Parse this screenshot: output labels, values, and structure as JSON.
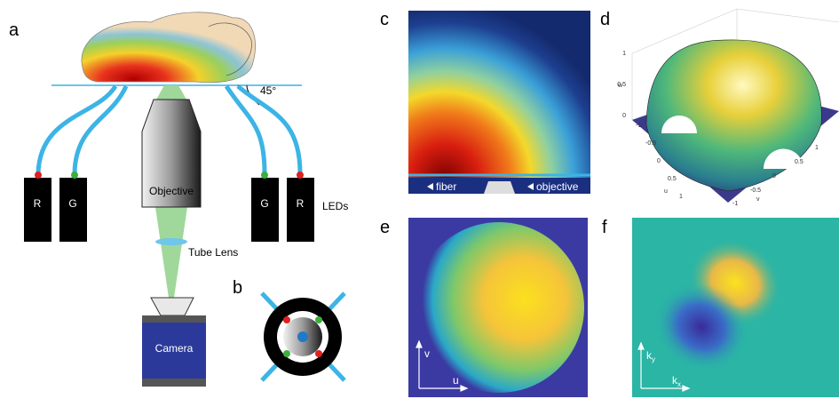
{
  "panel_a": {
    "label": "a",
    "angle": "45°",
    "leds": [
      "R",
      "G",
      "G",
      "R"
    ],
    "leds_label": "LEDs",
    "objective": "Objective",
    "tube_lens": "Tube Lens",
    "camera": "Camera"
  },
  "panel_b": {
    "label": "b"
  },
  "panel_c": {
    "label": "c",
    "fiber": "fiber",
    "objective": "objective"
  },
  "panel_d": {
    "label": "d",
    "w_label": "w",
    "u_label": "u",
    "v_label": "v",
    "w_ticks": [
      "1",
      "0.5",
      "0"
    ],
    "u_ticks": [
      "-1",
      "-0.5",
      "0",
      "0.5",
      "1"
    ],
    "v_ticks": [
      "-1",
      "-0.5",
      "0",
      "0.5",
      "1"
    ]
  },
  "panel_e": {
    "label": "e",
    "x_axis": "u",
    "y_axis": "v"
  },
  "panel_f": {
    "label": "f",
    "x_axis": {
      "main": "k",
      "sub": "x"
    },
    "y_axis": {
      "main": "k",
      "sub": "y"
    }
  }
}
